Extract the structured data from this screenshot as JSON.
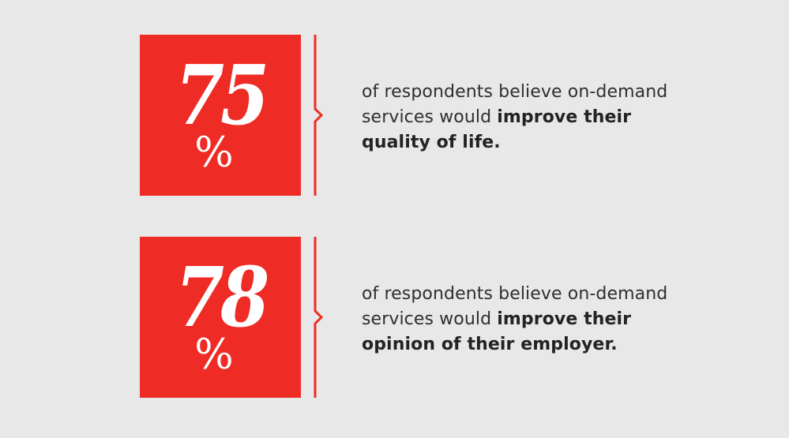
{
  "colors": {
    "background": "#e8e8e9",
    "accent": "#ee2b24",
    "text": "#2f2f31",
    "box_text": "#ffffff"
  },
  "stats": [
    {
      "number": "75",
      "percent": "%",
      "line1": "of respondents believe on-demand",
      "line2_regular": "services would ",
      "line2_bold": "improve their",
      "line3_bold": "quality of life."
    },
    {
      "number": "78",
      "percent": "%",
      "line1": "of respondents believe on-demand",
      "line2_regular": "services would ",
      "line2_bold": "improve their",
      "line3_bold": "opinion of their employer."
    }
  ]
}
